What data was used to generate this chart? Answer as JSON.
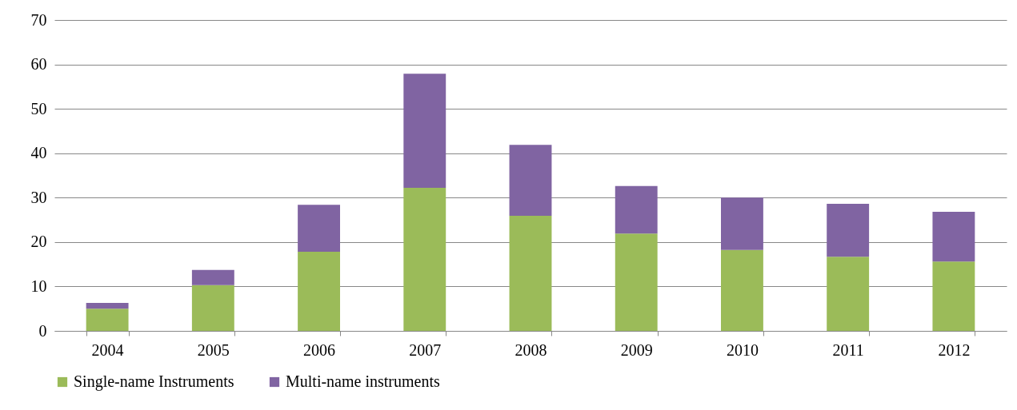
{
  "chart_data": {
    "type": "bar",
    "stacked": true,
    "categories": [
      "2004",
      "2005",
      "2006",
      "2007",
      "2008",
      "2009",
      "2010",
      "2011",
      "2012"
    ],
    "series": [
      {
        "name": "Single-name Instruments",
        "color": "#9bbb59",
        "values": [
          5.0,
          10.3,
          17.8,
          32.2,
          25.9,
          21.9,
          18.2,
          16.7,
          15.6
        ]
      },
      {
        "name": "Multi-name instruments",
        "color": "#8064a2",
        "values": [
          1.3,
          3.4,
          10.6,
          25.7,
          16.0,
          10.7,
          11.8,
          11.9,
          11.2
        ]
      }
    ],
    "ylim": [
      0,
      70
    ],
    "yticks": [
      0,
      10,
      20,
      30,
      40,
      50,
      60,
      70
    ],
    "grid": "y",
    "legend": "bottom"
  }
}
